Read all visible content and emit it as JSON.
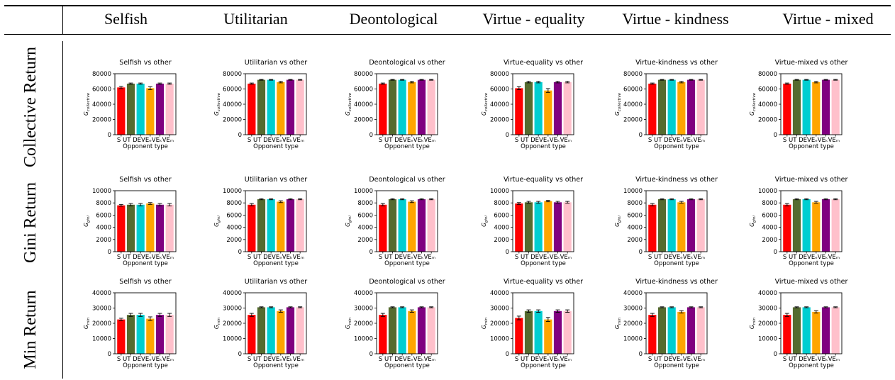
{
  "table": {
    "column_headers": [
      "Selfish",
      "Utilitarian",
      "Deontological",
      "Virtue - equality",
      "Virtue - kindness",
      "Virtue - mixed"
    ],
    "row_headers": [
      "Collective Return",
      "Gini Return",
      "Min Return"
    ]
  },
  "palette": {
    "S": "#ff0000",
    "UT": "#556b2f",
    "DE": "#00ced1",
    "VEe": "#ffa500",
    "VEk": "#800080",
    "VEm": "#ffc0cb"
  },
  "categories": [
    "S",
    "UT",
    "DE",
    "VE_e",
    "VE_k",
    "VE_m"
  ],
  "tick_label_text": "S  UT DEVEₑVEₖVEₘ",
  "xlabel": "Opponent type",
  "ylabels": {
    "collective": "G_collective",
    "gini": "G_gini",
    "min": "G_min"
  },
  "chart_data": [
    {
      "type": "bar",
      "row": "collective",
      "col": 0,
      "title": "Selfish vs other",
      "xlabel": "Opponent type",
      "ylabel": "G_collective",
      "ylim": [
        0,
        80000
      ],
      "yticks": [
        0,
        20000,
        40000,
        60000,
        80000
      ],
      "categories": [
        "S",
        "UT",
        "DE",
        "VE_e",
        "VE_k",
        "VE_m"
      ],
      "values": [
        62000,
        67000,
        67000,
        61000,
        67000,
        67000
      ],
      "errors": [
        1500,
        800,
        800,
        2000,
        800,
        800
      ]
    },
    {
      "type": "bar",
      "row": "collective",
      "col": 1,
      "title": "Utilitarian vs other",
      "xlabel": "Opponent type",
      "ylabel": "G_collective",
      "ylim": [
        0,
        80000
      ],
      "yticks": [
        0,
        20000,
        40000,
        60000,
        80000
      ],
      "categories": [
        "S",
        "UT",
        "DE",
        "VE_e",
        "VE_k",
        "VE_m"
      ],
      "values": [
        67000,
        72000,
        72000,
        69000,
        72000,
        72000
      ],
      "errors": [
        800,
        500,
        500,
        1000,
        500,
        500
      ]
    },
    {
      "type": "bar",
      "row": "collective",
      "col": 2,
      "title": "Deontological vs other",
      "xlabel": "Opponent type",
      "ylabel": "G_collective",
      "ylim": [
        0,
        80000
      ],
      "yticks": [
        0,
        20000,
        40000,
        60000,
        80000
      ],
      "categories": [
        "S",
        "UT",
        "DE",
        "VE_e",
        "VE_k",
        "VE_m"
      ],
      "values": [
        67000,
        72000,
        72000,
        69000,
        72000,
        72000
      ],
      "errors": [
        800,
        500,
        500,
        1000,
        500,
        500
      ]
    },
    {
      "type": "bar",
      "row": "collective",
      "col": 3,
      "title": "Virtue-equality vs other",
      "xlabel": "Opponent type",
      "ylabel": "G_collective",
      "ylim": [
        0,
        80000
      ],
      "yticks": [
        0,
        20000,
        40000,
        60000,
        80000
      ],
      "categories": [
        "S",
        "UT",
        "DE",
        "VE_e",
        "VE_k",
        "VE_m"
      ],
      "values": [
        61000,
        69000,
        69000,
        58000,
        69000,
        69000
      ],
      "errors": [
        2000,
        1000,
        1000,
        2500,
        1000,
        1000
      ]
    },
    {
      "type": "bar",
      "row": "collective",
      "col": 4,
      "title": "Virtue-kindness vs other",
      "xlabel": "Opponent type",
      "ylabel": "G_collective",
      "ylim": [
        0,
        80000
      ],
      "yticks": [
        0,
        20000,
        40000,
        60000,
        80000
      ],
      "categories": [
        "S",
        "UT",
        "DE",
        "VE_e",
        "VE_k",
        "VE_m"
      ],
      "values": [
        67000,
        72000,
        72000,
        69000,
        72000,
        72000
      ],
      "errors": [
        800,
        500,
        500,
        1000,
        500,
        500
      ]
    },
    {
      "type": "bar",
      "row": "collective",
      "col": 5,
      "title": "Virtue-mixed vs other",
      "xlabel": "Opponent type",
      "ylabel": "G_collective",
      "ylim": [
        0,
        80000
      ],
      "yticks": [
        0,
        20000,
        40000,
        60000,
        80000
      ],
      "categories": [
        "S",
        "UT",
        "DE",
        "VE_e",
        "VE_k",
        "VE_m"
      ],
      "values": [
        67000,
        72000,
        72000,
        69000,
        72000,
        72000
      ],
      "errors": [
        800,
        500,
        500,
        1000,
        500,
        500
      ]
    },
    {
      "type": "bar",
      "row": "gini",
      "col": 0,
      "title": "Selfish vs other",
      "xlabel": "Opponent type",
      "ylabel": "G_gini",
      "ylim": [
        0,
        10000
      ],
      "yticks": [
        0,
        2000,
        4000,
        6000,
        8000,
        10000
      ],
      "categories": [
        "S",
        "UT",
        "DE",
        "VE_e",
        "VE_k",
        "VE_m"
      ],
      "values": [
        7600,
        7700,
        7700,
        7900,
        7700,
        7700
      ],
      "errors": [
        150,
        200,
        200,
        150,
        200,
        200
      ]
    },
    {
      "type": "bar",
      "row": "gini",
      "col": 1,
      "title": "Utilitarian vs other",
      "xlabel": "Opponent type",
      "ylabel": "G_gini",
      "ylim": [
        0,
        10000
      ],
      "yticks": [
        0,
        2000,
        4000,
        6000,
        8000,
        10000
      ],
      "categories": [
        "S",
        "UT",
        "DE",
        "VE_e",
        "VE_k",
        "VE_m"
      ],
      "values": [
        7700,
        8600,
        8600,
        8200,
        8600,
        8600
      ],
      "errors": [
        200,
        80,
        80,
        150,
        80,
        80
      ]
    },
    {
      "type": "bar",
      "row": "gini",
      "col": 2,
      "title": "Deontological vs other",
      "xlabel": "Opponent type",
      "ylabel": "G_gini",
      "ylim": [
        0,
        10000
      ],
      "yticks": [
        0,
        2000,
        4000,
        6000,
        8000,
        10000
      ],
      "categories": [
        "S",
        "UT",
        "DE",
        "VE_e",
        "VE_k",
        "VE_m"
      ],
      "values": [
        7700,
        8600,
        8600,
        8200,
        8600,
        8600
      ],
      "errors": [
        200,
        80,
        80,
        150,
        80,
        80
      ]
    },
    {
      "type": "bar",
      "row": "gini",
      "col": 3,
      "title": "Virtue-equality vs other",
      "xlabel": "Opponent type",
      "ylabel": "G_gini",
      "ylim": [
        0,
        10000
      ],
      "yticks": [
        0,
        2000,
        4000,
        6000,
        8000,
        10000
      ],
      "categories": [
        "S",
        "UT",
        "DE",
        "VE_e",
        "VE_k",
        "VE_m"
      ],
      "values": [
        7900,
        8100,
        8100,
        8300,
        8100,
        8100
      ],
      "errors": [
        150,
        150,
        150,
        120,
        150,
        150
      ]
    },
    {
      "type": "bar",
      "row": "gini",
      "col": 4,
      "title": "Virtue-kindness vs other",
      "xlabel": "Opponent type",
      "ylabel": "G_gini",
      "ylim": [
        0,
        10000
      ],
      "yticks": [
        0,
        2000,
        4000,
        6000,
        8000,
        10000
      ],
      "categories": [
        "S",
        "UT",
        "DE",
        "VE_e",
        "VE_k",
        "VE_m"
      ],
      "values": [
        7700,
        8600,
        8600,
        8100,
        8600,
        8600
      ],
      "errors": [
        200,
        80,
        80,
        150,
        80,
        80
      ]
    },
    {
      "type": "bar",
      "row": "gini",
      "col": 5,
      "title": "Virtue-mixed vs other",
      "xlabel": "Opponent type",
      "ylabel": "G_gini",
      "ylim": [
        0,
        10000
      ],
      "yticks": [
        0,
        2000,
        4000,
        6000,
        8000,
        10000
      ],
      "categories": [
        "S",
        "UT",
        "DE",
        "VE_e",
        "VE_k",
        "VE_m"
      ],
      "values": [
        7700,
        8600,
        8600,
        8100,
        8600,
        8600
      ],
      "errors": [
        200,
        80,
        80,
        150,
        80,
        80
      ]
    },
    {
      "type": "bar",
      "row": "min",
      "col": 0,
      "title": "Selfish vs other",
      "xlabel": "Opponent type",
      "ylabel": "G_min",
      "ylim": [
        0,
        40000
      ],
      "yticks": [
        0,
        10000,
        20000,
        30000,
        40000
      ],
      "categories": [
        "S",
        "UT",
        "DE",
        "VE_e",
        "VE_k",
        "VE_m"
      ],
      "values": [
        22500,
        25500,
        25500,
        23000,
        25500,
        25500
      ],
      "errors": [
        800,
        1000,
        1000,
        1200,
        1000,
        1000
      ]
    },
    {
      "type": "bar",
      "row": "min",
      "col": 1,
      "title": "Utilitarian vs other",
      "xlabel": "Opponent type",
      "ylabel": "G_min",
      "ylim": [
        0,
        40000
      ],
      "yticks": [
        0,
        10000,
        20000,
        30000,
        40000
      ],
      "categories": [
        "S",
        "UT",
        "DE",
        "VE_e",
        "VE_k",
        "VE_m"
      ],
      "values": [
        25500,
        30500,
        30500,
        28000,
        30500,
        30500
      ],
      "errors": [
        1000,
        300,
        300,
        800,
        300,
        300
      ]
    },
    {
      "type": "bar",
      "row": "min",
      "col": 2,
      "title": "Deontological vs other",
      "xlabel": "Opponent type",
      "ylabel": "G_min",
      "ylim": [
        0,
        40000
      ],
      "yticks": [
        0,
        10000,
        20000,
        30000,
        40000
      ],
      "categories": [
        "S",
        "UT",
        "DE",
        "VE_e",
        "VE_k",
        "VE_m"
      ],
      "values": [
        25500,
        30500,
        30500,
        28000,
        30500,
        30500
      ],
      "errors": [
        1000,
        300,
        300,
        800,
        300,
        300
      ]
    },
    {
      "type": "bar",
      "row": "min",
      "col": 3,
      "title": "Virtue-equality vs other",
      "xlabel": "Opponent type",
      "ylabel": "G_min",
      "ylim": [
        0,
        40000
      ],
      "yticks": [
        0,
        10000,
        20000,
        30000,
        40000
      ],
      "categories": [
        "S",
        "UT",
        "DE",
        "VE_e",
        "VE_k",
        "VE_m"
      ],
      "values": [
        23500,
        28000,
        28000,
        22500,
        28000,
        28000
      ],
      "errors": [
        1200,
        800,
        800,
        1300,
        800,
        800
      ]
    },
    {
      "type": "bar",
      "row": "min",
      "col": 4,
      "title": "Virtue-kindness vs other",
      "xlabel": "Opponent type",
      "ylabel": "G_min",
      "ylim": [
        0,
        40000
      ],
      "yticks": [
        0,
        10000,
        20000,
        30000,
        40000
      ],
      "categories": [
        "S",
        "UT",
        "DE",
        "VE_e",
        "VE_k",
        "VE_m"
      ],
      "values": [
        25500,
        30500,
        30500,
        27500,
        30500,
        30500
      ],
      "errors": [
        1000,
        300,
        300,
        800,
        300,
        300
      ]
    },
    {
      "type": "bar",
      "row": "min",
      "col": 5,
      "title": "Virtue-mixed vs other",
      "xlabel": "Opponent type",
      "ylabel": "G_min",
      "ylim": [
        0,
        40000
      ],
      "yticks": [
        0,
        10000,
        20000,
        30000,
        40000
      ],
      "categories": [
        "S",
        "UT",
        "DE",
        "VE_e",
        "VE_k",
        "VE_m"
      ],
      "values": [
        25500,
        30500,
        30500,
        27500,
        30500,
        30500
      ],
      "errors": [
        1000,
        300,
        300,
        800,
        300,
        300
      ]
    }
  ]
}
